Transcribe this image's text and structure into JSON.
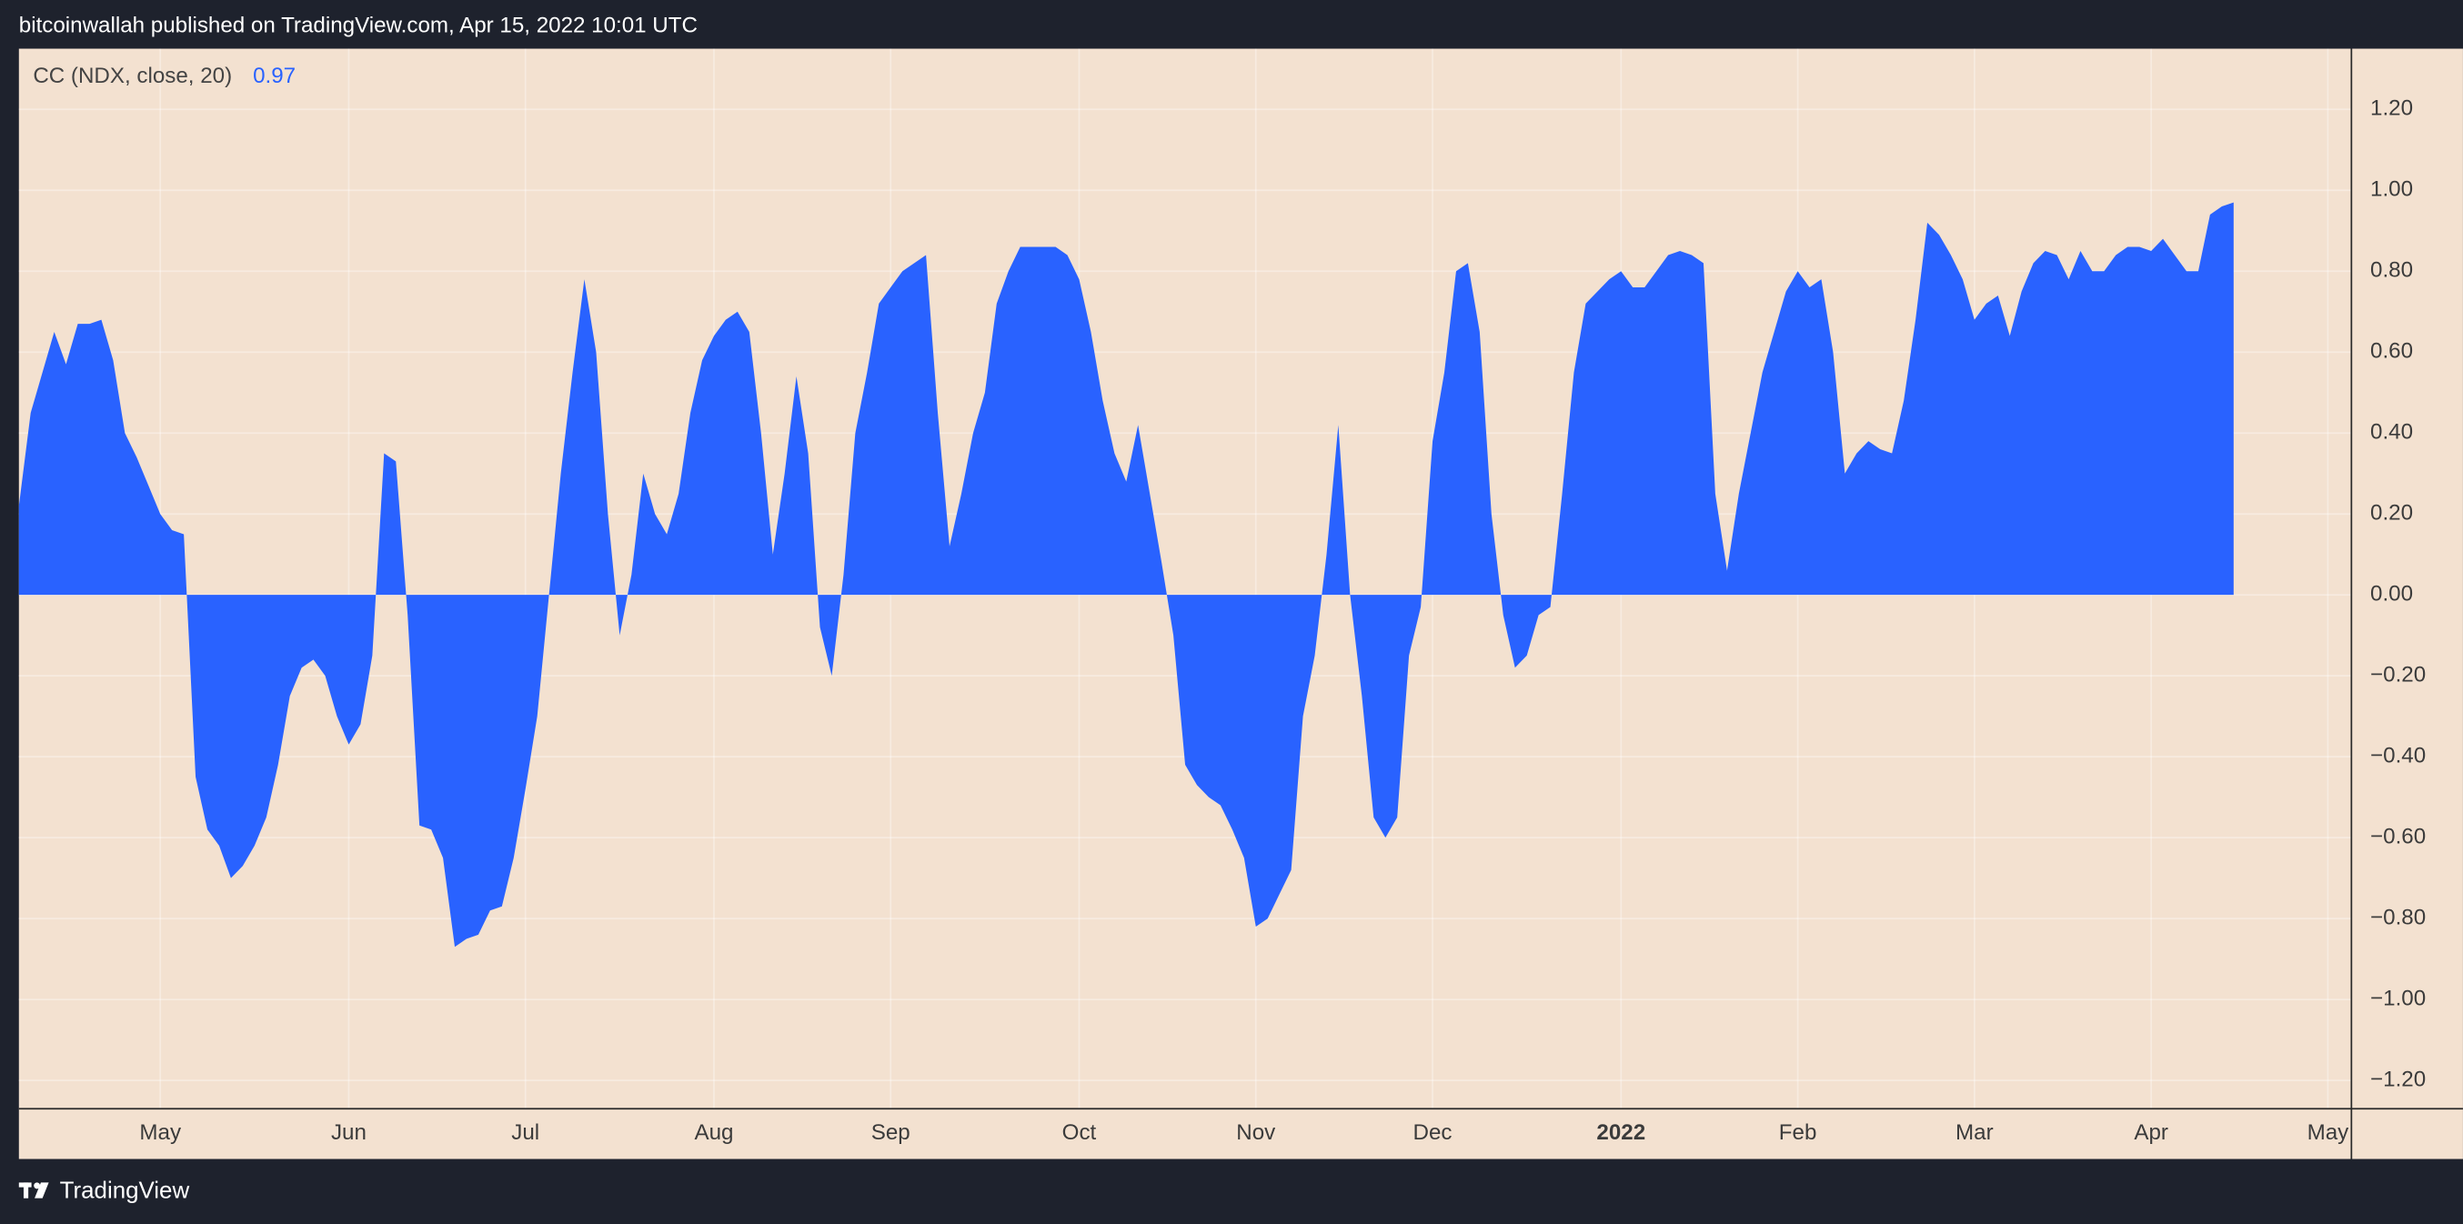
{
  "header": {
    "title": "bitcoinwallah published on TradingView.com, Apr 15, 2022 10:01 UTC"
  },
  "footer": {
    "brand": "TradingView"
  },
  "chart_data": {
    "type": "area",
    "indicator": {
      "name": "CC (NDX, close, 20)",
      "value": 0.97
    },
    "series": [
      {
        "name": "CC (NDX, close, 20)",
        "color": "#2962ff",
        "values": [
          0.22,
          0.45,
          0.55,
          0.65,
          0.57,
          0.67,
          0.67,
          0.68,
          0.58,
          0.4,
          0.34,
          0.27,
          0.2,
          0.16,
          0.15,
          -0.45,
          -0.58,
          -0.62,
          -0.7,
          -0.67,
          -0.62,
          -0.55,
          -0.42,
          -0.25,
          -0.18,
          -0.16,
          -0.2,
          -0.3,
          -0.37,
          -0.32,
          -0.15,
          0.35,
          0.33,
          -0.05,
          -0.57,
          -0.58,
          -0.65,
          -0.87,
          -0.85,
          -0.84,
          -0.78,
          -0.77,
          -0.65,
          -0.48,
          -0.3,
          0.0,
          0.3,
          0.55,
          0.78,
          0.6,
          0.2,
          -0.1,
          0.05,
          0.3,
          0.2,
          0.15,
          0.25,
          0.45,
          0.58,
          0.64,
          0.68,
          0.7,
          0.65,
          0.4,
          0.1,
          0.3,
          0.54,
          0.35,
          -0.08,
          -0.2,
          0.05,
          0.4,
          0.55,
          0.72,
          0.76,
          0.8,
          0.82,
          0.84,
          0.45,
          0.12,
          0.25,
          0.4,
          0.5,
          0.72,
          0.8,
          0.86,
          0.86,
          0.86,
          0.86,
          0.84,
          0.78,
          0.65,
          0.48,
          0.35,
          0.28,
          0.42,
          0.25,
          0.08,
          -0.1,
          -0.42,
          -0.47,
          -0.5,
          -0.52,
          -0.58,
          -0.65,
          -0.82,
          -0.8,
          -0.74,
          -0.68,
          -0.3,
          -0.15,
          0.1,
          0.42,
          0.0,
          -0.25,
          -0.55,
          -0.6,
          -0.55,
          -0.15,
          -0.03,
          0.38,
          0.55,
          0.8,
          0.82,
          0.65,
          0.2,
          -0.05,
          -0.18,
          -0.15,
          -0.05,
          -0.03,
          0.25,
          0.55,
          0.72,
          0.75,
          0.78,
          0.8,
          0.76,
          0.76,
          0.8,
          0.84,
          0.85,
          0.84,
          0.82,
          0.25,
          0.06,
          0.25,
          0.4,
          0.55,
          0.65,
          0.75,
          0.8,
          0.76,
          0.78,
          0.6,
          0.3,
          0.35,
          0.38,
          0.36,
          0.35,
          0.48,
          0.68,
          0.92,
          0.89,
          0.84,
          0.78,
          0.68,
          0.72,
          0.74,
          0.64,
          0.75,
          0.82,
          0.85,
          0.84,
          0.78,
          0.85,
          0.8,
          0.8,
          0.84,
          0.86,
          0.86,
          0.85,
          0.88,
          0.84,
          0.8,
          0.8,
          0.94,
          0.96,
          0.97,
          null,
          null,
          null,
          null,
          null,
          null,
          null,
          null,
          null,
          null
        ]
      }
    ],
    "categories": [
      null,
      null,
      null,
      null,
      null,
      null,
      null,
      null,
      null,
      null,
      null,
      null,
      "May",
      null,
      null,
      null,
      null,
      null,
      null,
      null,
      null,
      null,
      null,
      null,
      null,
      null,
      null,
      null,
      "Jun",
      null,
      null,
      null,
      null,
      null,
      null,
      null,
      null,
      null,
      null,
      null,
      null,
      null,
      null,
      "Jul",
      null,
      null,
      null,
      null,
      null,
      null,
      null,
      null,
      null,
      null,
      null,
      null,
      null,
      null,
      null,
      "Aug",
      null,
      null,
      null,
      null,
      null,
      null,
      null,
      null,
      null,
      null,
      null,
      null,
      null,
      null,
      "Sep",
      null,
      null,
      null,
      null,
      null,
      null,
      null,
      null,
      null,
      null,
      null,
      null,
      null,
      null,
      null,
      "Oct",
      null,
      null,
      null,
      null,
      null,
      null,
      null,
      null,
      null,
      null,
      null,
      null,
      null,
      null,
      "Nov",
      null,
      null,
      null,
      null,
      null,
      null,
      null,
      null,
      null,
      null,
      null,
      null,
      null,
      null,
      "Dec",
      null,
      null,
      null,
      null,
      null,
      null,
      null,
      null,
      null,
      null,
      null,
      null,
      null,
      null,
      null,
      "2022",
      null,
      null,
      null,
      null,
      null,
      null,
      null,
      null,
      null,
      null,
      null,
      null,
      null,
      null,
      "Feb",
      null,
      null,
      null,
      null,
      null,
      null,
      null,
      null,
      null,
      null,
      null,
      null,
      null,
      null,
      "Mar",
      null,
      null,
      null,
      null,
      null,
      null,
      null,
      null,
      null,
      null,
      null,
      null,
      null,
      null,
      "Apr",
      null,
      null,
      null,
      null,
      null,
      null,
      null,
      null,
      null,
      null,
      null,
      null,
      null,
      null,
      "May",
      null,
      null
    ],
    "ylim": [
      -1.27,
      1.35
    ],
    "yticks": [
      {
        "value": -1.2,
        "label": "−1.20"
      },
      {
        "value": -1.0,
        "label": "−1.00"
      },
      {
        "value": -0.8,
        "label": "−0.80"
      },
      {
        "value": -0.6,
        "label": "−0.60"
      },
      {
        "value": -0.4,
        "label": "−0.40"
      },
      {
        "value": -0.2,
        "label": "−0.20"
      },
      {
        "value": 0,
        "label": "0.00"
      },
      {
        "value": 0.2,
        "label": "0.20"
      },
      {
        "value": 0.4,
        "label": "0.40"
      },
      {
        "value": 0.6,
        "label": "0.60"
      },
      {
        "value": 0.8,
        "label": "0.80"
      },
      {
        "value": 1.0,
        "label": "1.00"
      },
      {
        "value": 1.2,
        "label": "1.20"
      }
    ],
    "grid": true
  }
}
